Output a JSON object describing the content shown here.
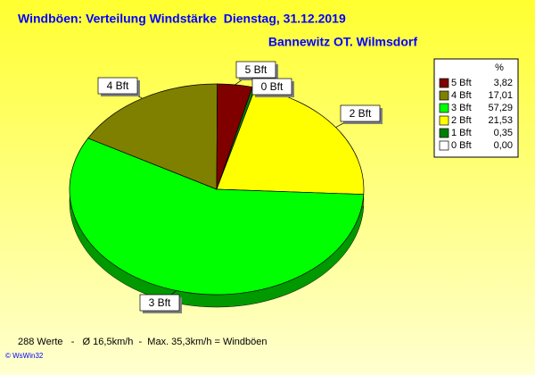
{
  "chart_data": {
    "type": "pie",
    "title": "Windböen: Verteilung Windstärke  Dienstag, 31.12.2019",
    "subtitle": "Bannewitz OT. Wilmsdorf",
    "legend_header": "%",
    "categories": [
      "5 Bft",
      "4 Bft",
      "3 Bft",
      "2 Bft",
      "1 Bft",
      "0 Bft"
    ],
    "values": [
      3.82,
      17.01,
      57.29,
      21.53,
      0.35,
      0.0
    ],
    "value_labels": [
      "3,82",
      "17,01",
      "57,29",
      "21,53",
      "0,35",
      "0,00"
    ],
    "colors": [
      "#800000",
      "#808000",
      "#00ff00",
      "#ffff00",
      "#008000",
      "#ffffff"
    ],
    "legend": "upper right",
    "footer": "288 Werte   -   Ø 16,5km/h  -  Max. 35,3km/h = Windböen",
    "copyright": "© WsWin32"
  }
}
